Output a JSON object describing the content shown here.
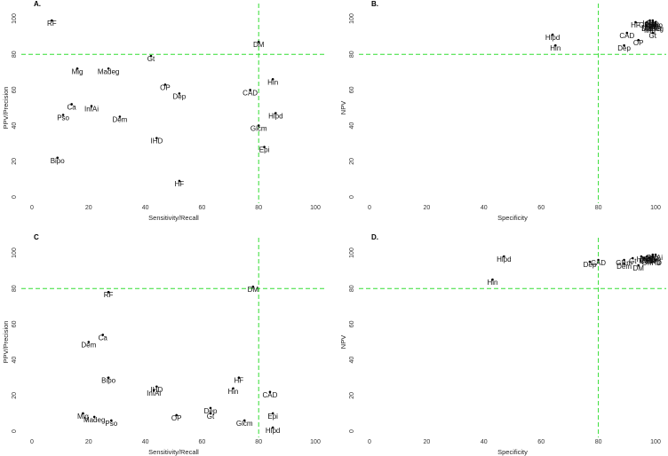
{
  "chart_data": [
    {
      "type": "scatter",
      "title": "A.",
      "xlabel": "Sensitivity/Recall",
      "ylabel": "PPV/Precision",
      "xlim": [
        0,
        100
      ],
      "ylim": [
        0,
        100
      ],
      "xticks": [
        0,
        20,
        40,
        60,
        80,
        100
      ],
      "yticks": [
        0,
        20,
        40,
        60,
        80,
        100
      ],
      "reference_lines": {
        "x": 80,
        "y": 80,
        "color": "#33dd33"
      },
      "points": [
        {
          "label": "RF",
          "x": 7,
          "y": 99
        },
        {
          "label": "DM",
          "x": 80,
          "y": 87
        },
        {
          "label": "Gt",
          "x": 42,
          "y": 79
        },
        {
          "label": "Mig",
          "x": 16,
          "y": 72
        },
        {
          "label": "Madeg",
          "x": 27,
          "y": 72
        },
        {
          "label": "Hin",
          "x": 85,
          "y": 66
        },
        {
          "label": "OP",
          "x": 47,
          "y": 63
        },
        {
          "label": "CAD",
          "x": 77,
          "y": 60
        },
        {
          "label": "Dep",
          "x": 52,
          "y": 58
        },
        {
          "label": "Ca",
          "x": 14,
          "y": 52
        },
        {
          "label": "InfAi",
          "x": 21,
          "y": 51
        },
        {
          "label": "Pso",
          "x": 11,
          "y": 46
        },
        {
          "label": "Dem",
          "x": 31,
          "y": 45
        },
        {
          "label": "Hlpd",
          "x": 86,
          "y": 47
        },
        {
          "label": "Glcm",
          "x": 80,
          "y": 40
        },
        {
          "label": "IHD",
          "x": 44,
          "y": 33
        },
        {
          "label": "Epi",
          "x": 82,
          "y": 28
        },
        {
          "label": "Bipo",
          "x": 9,
          "y": 22
        },
        {
          "label": "HF",
          "x": 52,
          "y": 9
        }
      ]
    },
    {
      "type": "scatter",
      "title": "B.",
      "xlabel": "Specificity",
      "ylabel": "NPV",
      "xlim": [
        0,
        100
      ],
      "ylim": [
        0,
        100
      ],
      "xticks": [
        0,
        20,
        40,
        60,
        80,
        100
      ],
      "yticks": [
        0,
        20,
        40,
        60,
        80,
        100
      ],
      "reference_lines": {
        "x": 80,
        "y": 80,
        "color": "#33dd33"
      },
      "points": [
        {
          "label": "Hlpd",
          "x": 64,
          "y": 91
        },
        {
          "label": "Hin",
          "x": 65,
          "y": 85
        },
        {
          "label": "CAD",
          "x": 90,
          "y": 92
        },
        {
          "label": "OP",
          "x": 94,
          "y": 88
        },
        {
          "label": "Dep",
          "x": 89,
          "y": 85
        },
        {
          "label": "HF",
          "x": 93,
          "y": 98
        },
        {
          "label": "Gt",
          "x": 99,
          "y": 92
        },
        {
          "label": "Glcm",
          "x": 97,
          "y": 98
        },
        {
          "label": "Madeg",
          "x": 99,
          "y": 96
        },
        {
          "label": "Mig",
          "x": 98,
          "y": 95
        },
        {
          "label": "RF",
          "x": 99,
          "y": 97
        },
        {
          "label": "DM",
          "x": 97,
          "y": 96
        },
        {
          "label": "Ca",
          "x": 100,
          "y": 97
        },
        {
          "label": "Dem",
          "x": 99,
          "y": 98
        },
        {
          "label": "Epi",
          "x": 98,
          "y": 97
        },
        {
          "label": "IHD",
          "x": 100,
          "y": 96
        },
        {
          "label": "Pso",
          "x": 99,
          "y": 99
        },
        {
          "label": "Bipo",
          "x": 100,
          "y": 98
        },
        {
          "label": "InfAi",
          "x": 98,
          "y": 99
        }
      ]
    },
    {
      "type": "scatter",
      "title": "C",
      "xlabel": "Sensitivity/Recall",
      "ylabel": "PPV/Precision",
      "xlim": [
        0,
        100
      ],
      "ylim": [
        0,
        100
      ],
      "xticks": [
        0,
        20,
        40,
        60,
        80,
        100
      ],
      "yticks": [
        0,
        20,
        40,
        60,
        80,
        100
      ],
      "reference_lines": {
        "x": 80,
        "y": 80,
        "color": "#33dd33"
      },
      "points": [
        {
          "label": "DM",
          "x": 78,
          "y": 81
        },
        {
          "label": "RF",
          "x": 27,
          "y": 78
        },
        {
          "label": "Ca",
          "x": 25,
          "y": 54
        },
        {
          "label": "Dem",
          "x": 20,
          "y": 50
        },
        {
          "label": "Bipo",
          "x": 27,
          "y": 30
        },
        {
          "label": "HF",
          "x": 73,
          "y": 30
        },
        {
          "label": "IHD",
          "x": 44,
          "y": 25
        },
        {
          "label": "Hin",
          "x": 71,
          "y": 24
        },
        {
          "label": "InfAi",
          "x": 43,
          "y": 23
        },
        {
          "label": "CAD",
          "x": 84,
          "y": 22
        },
        {
          "label": "Dep",
          "x": 63,
          "y": 13
        },
        {
          "label": "Gt",
          "x": 63,
          "y": 10
        },
        {
          "label": "OP",
          "x": 51,
          "y": 9
        },
        {
          "label": "Epi",
          "x": 85,
          "y": 10
        },
        {
          "label": "Mig",
          "x": 18,
          "y": 10
        },
        {
          "label": "Madeg",
          "x": 22,
          "y": 8
        },
        {
          "label": "Pso",
          "x": 28,
          "y": 6
        },
        {
          "label": "Glcm",
          "x": 75,
          "y": 6
        },
        {
          "label": "Hlpd",
          "x": 85,
          "y": 2
        }
      ]
    },
    {
      "type": "scatter",
      "title": "D.",
      "xlabel": "Specificity",
      "ylabel": "NPV",
      "xlim": [
        0,
        100
      ],
      "ylim": [
        0,
        100
      ],
      "xticks": [
        0,
        20,
        40,
        60,
        80,
        100
      ],
      "yticks": [
        0,
        20,
        40,
        60,
        80,
        100
      ],
      "reference_lines": {
        "x": 80,
        "y": 80,
        "color": "#33dd33"
      },
      "points": [
        {
          "label": "Hlpd",
          "x": 47,
          "y": 98
        },
        {
          "label": "Hin",
          "x": 43,
          "y": 85
        },
        {
          "label": "CAD",
          "x": 80,
          "y": 96
        },
        {
          "label": "Dep",
          "x": 77,
          "y": 95
        },
        {
          "label": "Ca",
          "x": 96,
          "y": 97
        },
        {
          "label": "Glcm",
          "x": 89,
          "y": 96
        },
        {
          "label": "Dem",
          "x": 89,
          "y": 94
        },
        {
          "label": "DM",
          "x": 94,
          "y": 93
        },
        {
          "label": "Gt",
          "x": 92,
          "y": 97
        },
        {
          "label": "HF",
          "x": 95,
          "y": 98
        },
        {
          "label": "Mig",
          "x": 97,
          "y": 98
        },
        {
          "label": "Madeg",
          "x": 98,
          "y": 97
        },
        {
          "label": "RF",
          "x": 99,
          "y": 98
        },
        {
          "label": "OP",
          "x": 97,
          "y": 96
        },
        {
          "label": "Pso",
          "x": 99,
          "y": 99
        },
        {
          "label": "Epi",
          "x": 98,
          "y": 97
        },
        {
          "label": "IHD",
          "x": 100,
          "y": 96
        },
        {
          "label": "Bipo",
          "x": 99,
          "y": 98
        },
        {
          "label": "InfAi",
          "x": 100,
          "y": 99
        }
      ]
    }
  ]
}
